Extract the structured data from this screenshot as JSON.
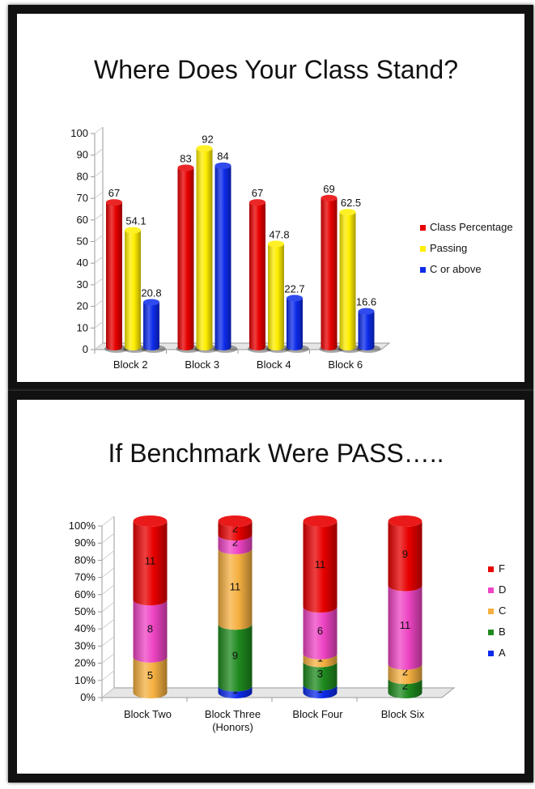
{
  "chart_data": [
    {
      "type": "bar",
      "title": "Where Does Your Class Stand?",
      "categories": [
        "Block 2",
        "Block 3",
        "Block 4",
        "Block 6"
      ],
      "ylim": [
        0,
        100
      ],
      "yticks": [
        "0",
        "10",
        "20",
        "30",
        "40",
        "50",
        "60",
        "70",
        "80",
        "90",
        "100"
      ],
      "legend_position": "right",
      "grid": false,
      "series": [
        {
          "name": "Class Percentage",
          "color": "#e80000",
          "values": [
            67,
            83,
            67,
            69
          ],
          "labels": [
            "67",
            "83",
            "67",
            "69"
          ]
        },
        {
          "name": "Passing",
          "color": "#ffee00",
          "values": [
            54.1,
            92,
            47.8,
            62.5
          ],
          "labels": [
            "54.1",
            "92",
            "47.8",
            "62.5"
          ]
        },
        {
          "name": "C or above",
          "color": "#0c2bea",
          "values": [
            20.8,
            84,
            22.7,
            16.6
          ],
          "labels": [
            "20.8",
            "84",
            "22.7",
            "16.6"
          ]
        }
      ]
    },
    {
      "type": "bar",
      "stacked": "percent",
      "title": "If Benchmark Were PASS…..",
      "categories": [
        "Block Two",
        "Block Three (Honors)",
        "Block Four",
        "Block Six"
      ],
      "category_lines": [
        [
          "Block Two"
        ],
        [
          "Block Three",
          "(Honors)"
        ],
        [
          "Block Four"
        ],
        [
          "Block Six"
        ]
      ],
      "ylim": [
        0,
        100
      ],
      "yticks": [
        "0%",
        "10%",
        "20%",
        "30%",
        "40%",
        "50%",
        "60%",
        "70%",
        "80%",
        "90%",
        "100%"
      ],
      "legend_position": "right",
      "grid": false,
      "legend_order": [
        "F",
        "D",
        "C",
        "B",
        "A"
      ],
      "series": [
        {
          "name": "A",
          "color": "#0c2bea",
          "values": [
            0,
            1,
            1,
            0
          ],
          "labels": [
            "0",
            "1",
            "1",
            "0"
          ]
        },
        {
          "name": "B",
          "color": "#1f8a1f",
          "values": [
            0,
            9,
            3,
            2
          ],
          "labels": [
            "",
            "9",
            "3",
            "2"
          ]
        },
        {
          "name": "C",
          "color": "#f5b041",
          "values": [
            5,
            11,
            1,
            2
          ],
          "labels": [
            "5",
            "11",
            "1",
            "2"
          ]
        },
        {
          "name": "D",
          "color": "#ee44c4",
          "values": [
            8,
            2,
            6,
            11
          ],
          "labels": [
            "8",
            "2",
            "6",
            "11"
          ]
        },
        {
          "name": "F",
          "color": "#e80000",
          "values": [
            11,
            2,
            11,
            9
          ],
          "labels": [
            "11",
            "2",
            "11",
            "9"
          ]
        }
      ]
    }
  ]
}
